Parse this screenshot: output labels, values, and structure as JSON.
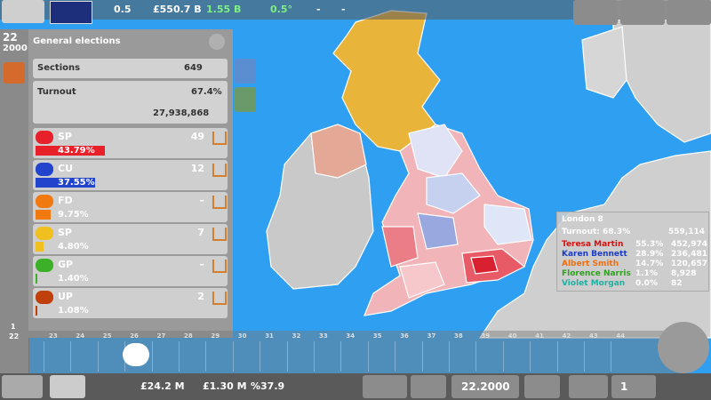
{
  "top_bar": {
    "day": "22",
    "year": "2000",
    "approval": "0.5",
    "treasury": "£550.7 B",
    "growth": "1.55 B",
    "emissions": "0.5°",
    "justice": "-",
    "science": "-"
  },
  "panel": {
    "title": "General elections",
    "sections_label": "Sections",
    "sections": "649",
    "turnout_label": "Turnout",
    "turnout": "67.4%",
    "voters": "27,938,868",
    "parties": [
      {
        "name": "SP",
        "seats": "49",
        "pct": 43.79,
        "pct_label": "43.79%",
        "color": "#e8202a"
      },
      {
        "name": "CU",
        "seats": "12",
        "pct": 37.55,
        "pct_label": "37.55%",
        "color": "#2244cc"
      },
      {
        "name": "FD",
        "seats": "–",
        "pct": 9.75,
        "pct_label": "9.75%",
        "color": "#f07a10"
      },
      {
        "name": "SP",
        "seats": "7",
        "pct": 4.8,
        "pct_label": "4.80%",
        "color": "#f0c020"
      },
      {
        "name": "GP",
        "seats": "–",
        "pct": 1.4,
        "pct_label": "1.40%",
        "color": "#3cb028"
      },
      {
        "name": "UP",
        "seats": "2",
        "pct": 1.08,
        "pct_label": "1.08%",
        "color": "#c0400c"
      }
    ]
  },
  "timeline": {
    "days": [
      "23",
      "24",
      "25",
      "26",
      "27",
      "28",
      "29",
      "30",
      "31",
      "32",
      "33",
      "34",
      "35",
      "36",
      "37",
      "38",
      "39",
      "40",
      "41",
      "42",
      "43",
      "44"
    ],
    "side_top": "1",
    "side_bottom": "22"
  },
  "tooltip": {
    "title": "London 8",
    "turnout": "Turnout: 68.3%",
    "voters": "559,114",
    "candidates": [
      {
        "name": "Teresa Martin",
        "pct": "55.3%",
        "votes": "452,974",
        "color": "#d81010"
      },
      {
        "name": "Karen Bennett",
        "pct": "28.9%",
        "votes": "236,481",
        "color": "#1a3cc8"
      },
      {
        "name": "Albert Smith",
        "pct": "14.7%",
        "votes": "120,657",
        "color": "#f07010"
      },
      {
        "name": "Florence Narris",
        "pct": "1.1%",
        "votes": "8,928",
        "color": "#30a020"
      },
      {
        "name": "Violet Morgan",
        "pct": "0.0%",
        "votes": "82",
        "color": "#20b0a0"
      }
    ]
  },
  "bottom_bar": {
    "income": "£24.2 M",
    "expenses": "£1.30 M",
    "rate": "%37.9",
    "date": "22.2000",
    "count": "1"
  }
}
